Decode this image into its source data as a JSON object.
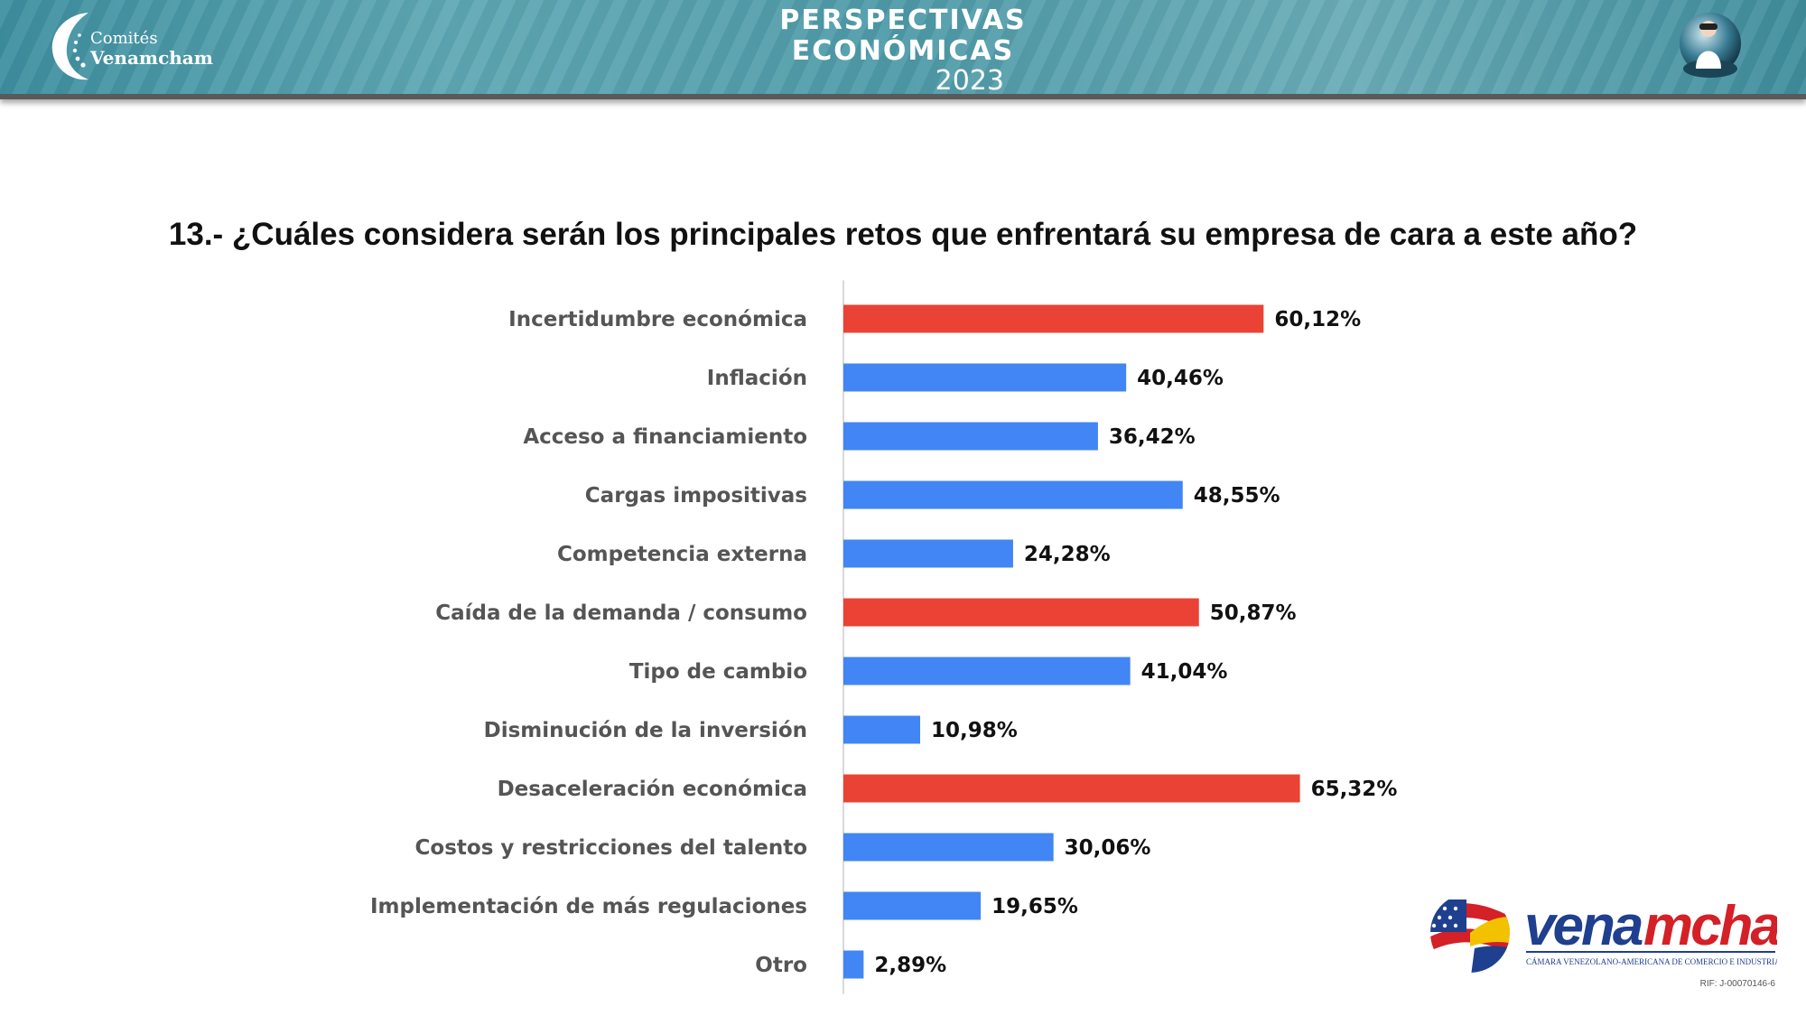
{
  "header": {
    "brand_line1": "Comités",
    "brand_line2": "Venamcham",
    "title_line1": "PERSPECTIVAS",
    "title_line2": "ECONÓMICAS",
    "title_year": "2023"
  },
  "question": "13.- ¿Cuáles considera serán los principales retos que enfrentará su empresa de cara a este año?",
  "chart_data": {
    "type": "bar",
    "orientation": "horizontal",
    "categories": [
      "Incertidumbre económica",
      "Inflación",
      "Acceso a financiamiento",
      "Cargas impositivas",
      "Competencia externa",
      "Caída de la demanda / consumo",
      "Tipo de cambio",
      "Disminución de la inversión",
      "Desaceleración económica",
      "Costos y restricciones del talento",
      "Implementación de más regulaciones",
      "Otro"
    ],
    "values": [
      60.12,
      40.46,
      36.42,
      48.55,
      24.28,
      50.87,
      41.04,
      10.98,
      65.32,
      30.06,
      19.65,
      2.89
    ],
    "value_labels": [
      "60,12%",
      "40,46%",
      "36,42%",
      "48,55%",
      "24,28%",
      "50,87%",
      "41,04%",
      "10,98%",
      "65,32%",
      "30,06%",
      "19,65%",
      "2,89%"
    ],
    "highlighted": [
      true,
      false,
      false,
      false,
      false,
      true,
      false,
      false,
      true,
      false,
      false,
      false
    ],
    "xlim": [
      0,
      70
    ],
    "grid": false,
    "colors": {
      "default": "#4285F4",
      "highlight": "#EA4335"
    }
  },
  "footer_logo": {
    "name": "venamcham",
    "subtitle": "CÁMARA VENEZOLANO-AMERICANA DE COMERCIO E INDUSTRIA",
    "rif": "RIF: J-00070146-6",
    "colors": {
      "navy": "#1f3f8f",
      "red": "#d42027"
    }
  }
}
